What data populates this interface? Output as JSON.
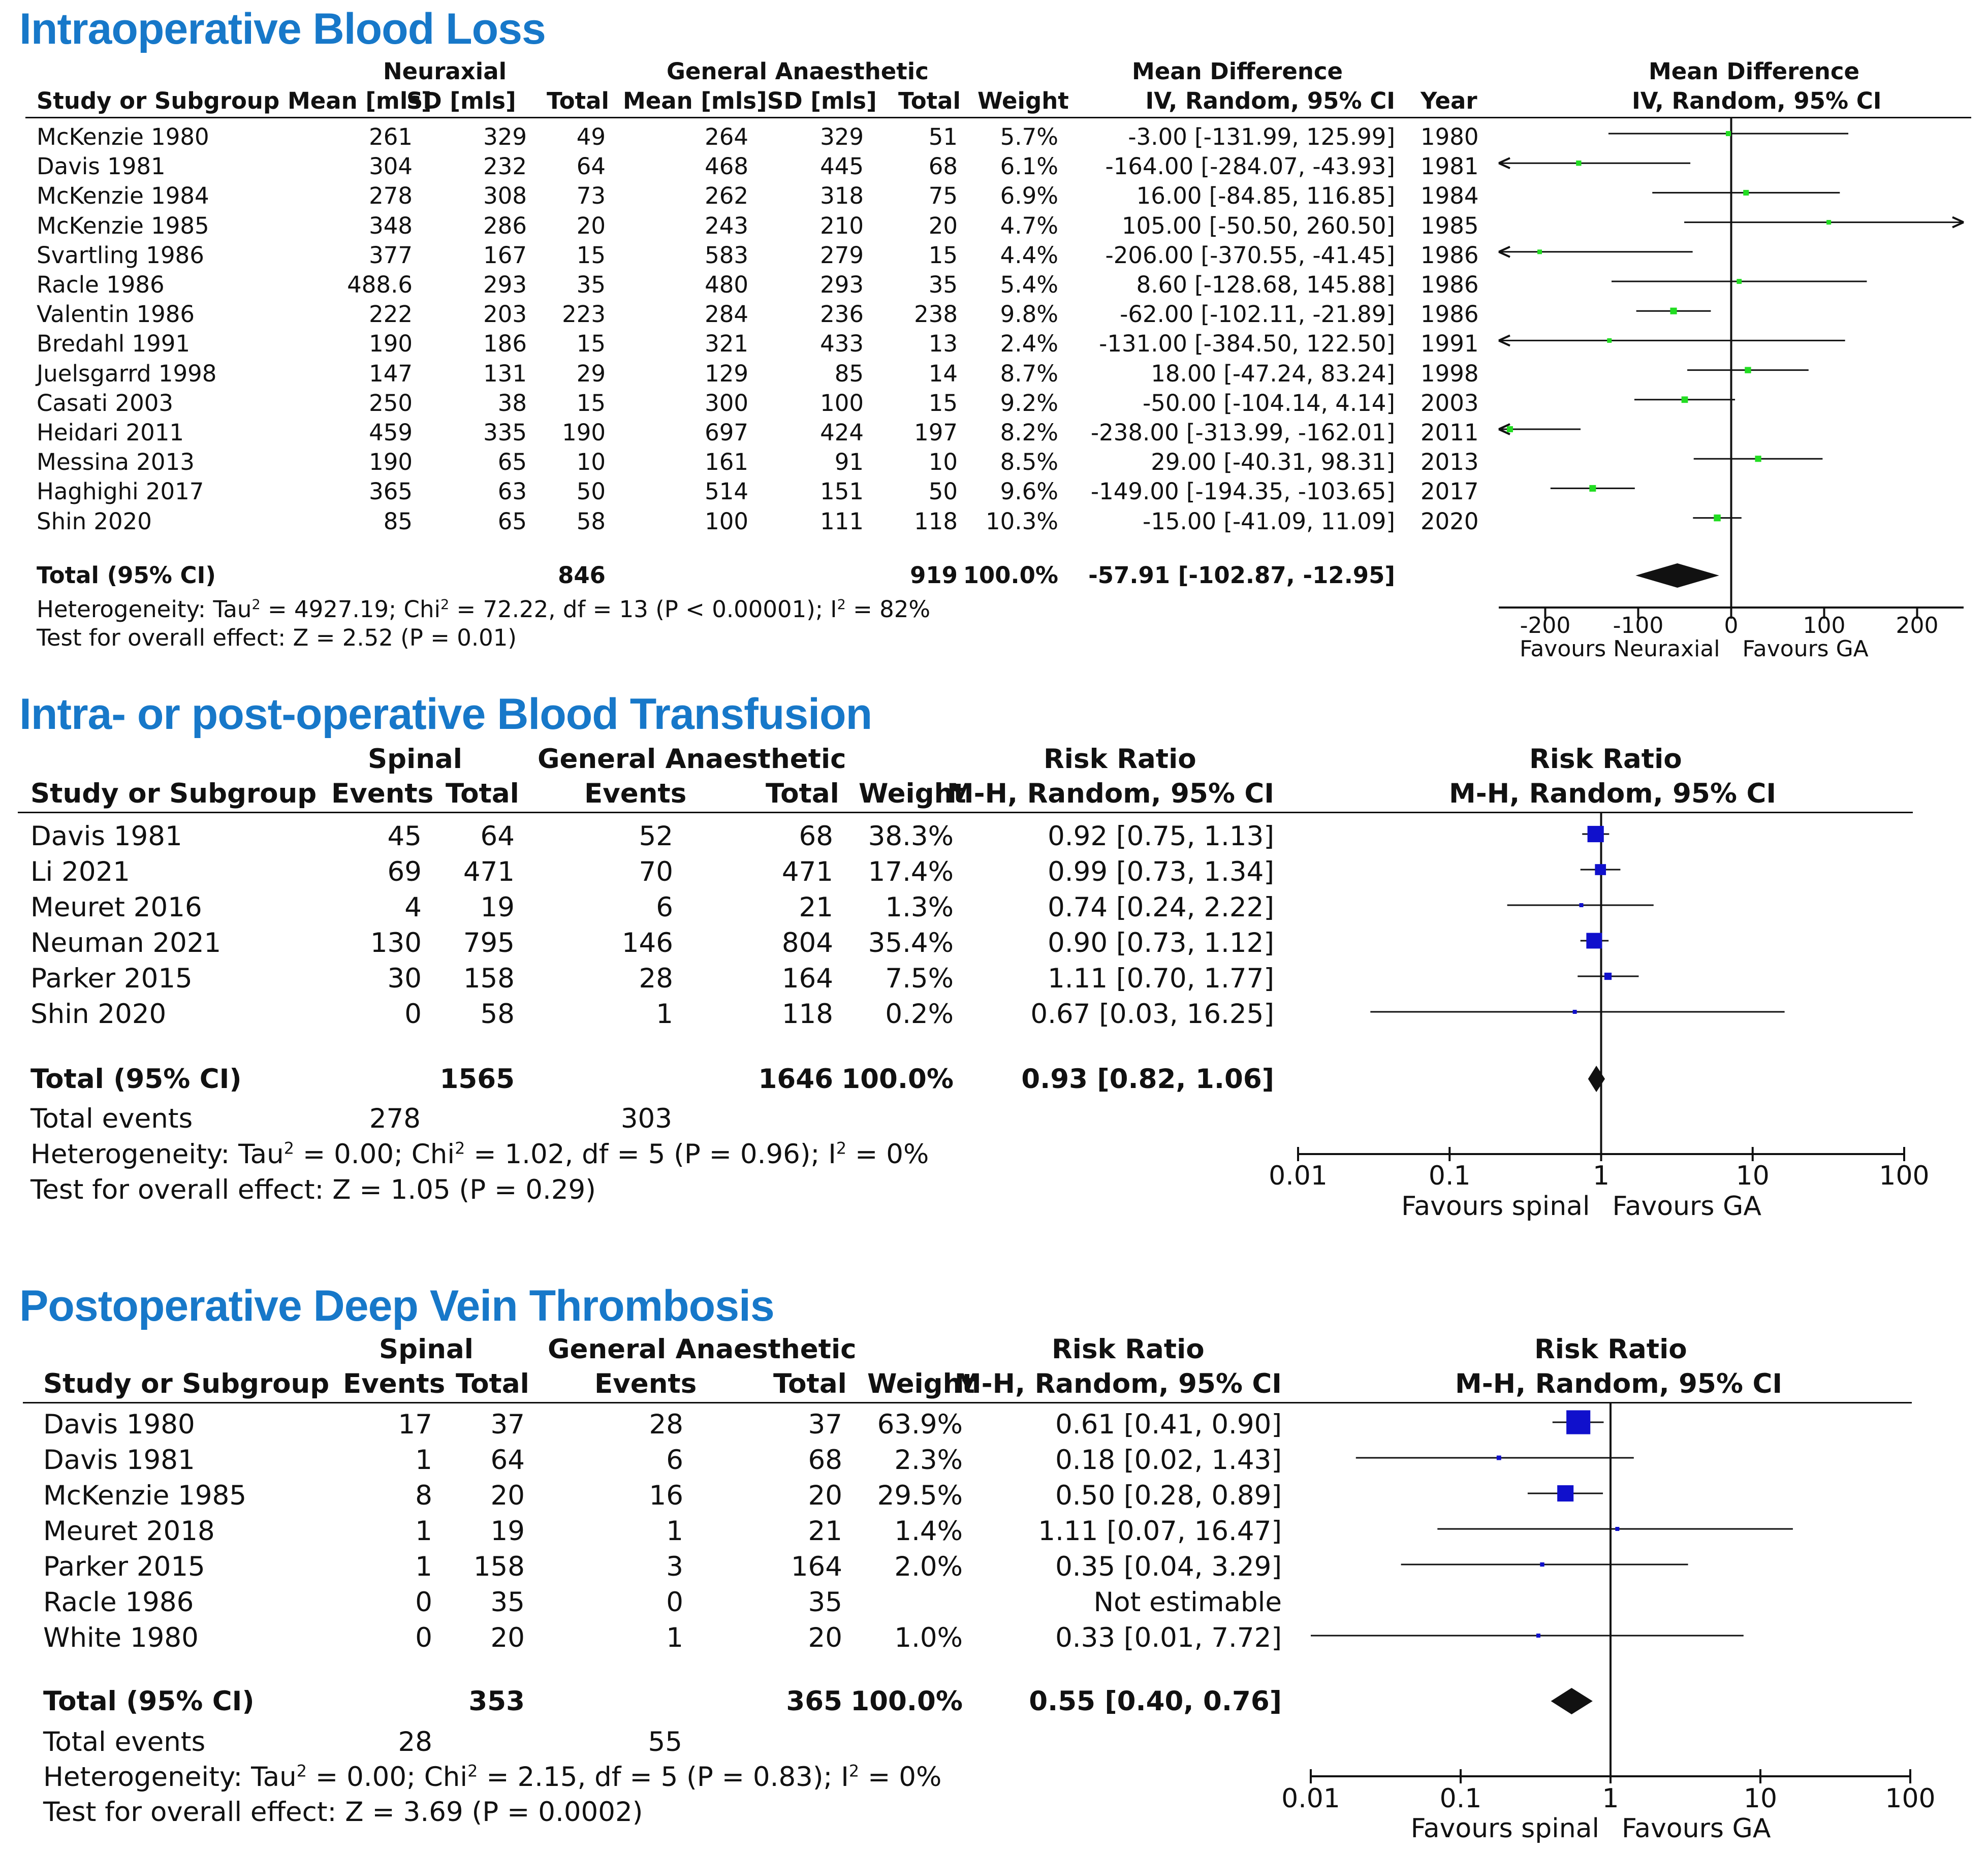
{
  "sections": [
    {
      "title": "Intraoperative Blood Loss",
      "group1": "Neuraxial",
      "group2": "General Anaesthetic",
      "col_headers": [
        "Study or Subgroup",
        "Mean [mls]",
        "SD [mls]",
        "Total",
        "Mean [mls]",
        "SD [mls]",
        "Total",
        "Weight",
        "IV, Random, 95% CI",
        "Year"
      ],
      "effect_header": "Mean Difference",
      "effect_method": "IV, Random, 95% CI",
      "plot_header": "Mean Difference",
      "plot_method": "IV, Random, 95% CI",
      "rows": [
        [
          "McKenzie 1980",
          "261",
          "329",
          "49",
          "264",
          "329",
          "51",
          "5.7%",
          "-3.00 [-131.99, 125.99]",
          "1980"
        ],
        [
          "Davis 1981",
          "304",
          "232",
          "64",
          "468",
          "445",
          "68",
          "6.1%",
          "-164.00 [-284.07, -43.93]",
          "1981"
        ],
        [
          "McKenzie 1984",
          "278",
          "308",
          "73",
          "262",
          "318",
          "75",
          "6.9%",
          "16.00 [-84.85, 116.85]",
          "1984"
        ],
        [
          "McKenzie 1985",
          "348",
          "286",
          "20",
          "243",
          "210",
          "20",
          "4.7%",
          "105.00 [-50.50, 260.50]",
          "1985"
        ],
        [
          "Svartling 1986",
          "377",
          "167",
          "15",
          "583",
          "279",
          "15",
          "4.4%",
          "-206.00 [-370.55, -41.45]",
          "1986"
        ],
        [
          "Racle 1986",
          "488.6",
          "293",
          "35",
          "480",
          "293",
          "35",
          "5.4%",
          "8.60 [-128.68, 145.88]",
          "1986"
        ],
        [
          "Valentin 1986",
          "222",
          "203",
          "223",
          "284",
          "236",
          "238",
          "9.8%",
          "-62.00 [-102.11, -21.89]",
          "1986"
        ],
        [
          "Bredahl 1991",
          "190",
          "186",
          "15",
          "321",
          "433",
          "13",
          "2.4%",
          "-131.00 [-384.50, 122.50]",
          "1991"
        ],
        [
          "Juelsgarrd 1998",
          "147",
          "131",
          "29",
          "129",
          "85",
          "14",
          "8.7%",
          "18.00 [-47.24, 83.24]",
          "1998"
        ],
        [
          "Casati 2003",
          "250",
          "38",
          "15",
          "300",
          "100",
          "15",
          "9.2%",
          "-50.00 [-104.14, 4.14]",
          "2003"
        ],
        [
          "Heidari 2011",
          "459",
          "335",
          "190",
          "697",
          "424",
          "197",
          "8.2%",
          "-238.00 [-313.99, -162.01]",
          "2011"
        ],
        [
          "Messina 2013",
          "190",
          "65",
          "10",
          "161",
          "91",
          "10",
          "8.5%",
          "29.00 [-40.31, 98.31]",
          "2013"
        ],
        [
          "Haghighi 2017",
          "365",
          "63",
          "50",
          "514",
          "151",
          "50",
          "9.6%",
          "-149.00 [-194.35, -103.65]",
          "2017"
        ],
        [
          "Shin 2020",
          "85",
          "65",
          "58",
          "100",
          "111",
          "118",
          "10.3%",
          "-15.00 [-41.09, 11.09]",
          "2020"
        ]
      ],
      "total_row": [
        "Total (95% CI)",
        "846",
        "919",
        "100.0%",
        "-57.91 [-102.87, -12.95]"
      ],
      "heterogeneity": [
        "Heterogeneity: Tau",
        "2",
        " = 4927.19; Chi",
        "2",
        " = 72.22, df = 13 (P < 0.00001); I",
        "2",
        " = 82%"
      ],
      "overall_effect": "Test for overall effect: Z = 2.52 (P = 0.01)",
      "axis_ticks": [
        "-200",
        "-100",
        "0",
        "100",
        "200"
      ],
      "favours_left": "Favours Neuraxial",
      "favours_right": "Favours GA"
    },
    {
      "title": "Intra- or post-operative Blood Transfusion",
      "group1": "Spinal",
      "group2": "General Anaesthetic",
      "col_headers": [
        "Study or Subgroup",
        "Events",
        "Total",
        "Events",
        "Total",
        "Weight",
        "M-H, Random, 95% CI"
      ],
      "effect_header": "Risk Ratio",
      "effect_method": "M-H, Random, 95% CI",
      "plot_header": "Risk Ratio",
      "plot_method": "M-H, Random, 95% CI",
      "rows": [
        [
          "Davis 1981",
          "45",
          "64",
          "52",
          "68",
          "38.3%",
          "0.92 [0.75, 1.13]"
        ],
        [
          "Li 2021",
          "69",
          "471",
          "70",
          "471",
          "17.4%",
          "0.99 [0.73, 1.34]"
        ],
        [
          "Meuret 2016",
          "4",
          "19",
          "6",
          "21",
          "1.3%",
          "0.74 [0.24, 2.22]"
        ],
        [
          "Neuman 2021",
          "130",
          "795",
          "146",
          "804",
          "35.4%",
          "0.90 [0.73, 1.12]"
        ],
        [
          "Parker 2015",
          "30",
          "158",
          "28",
          "164",
          "7.5%",
          "1.11 [0.70, 1.77]"
        ],
        [
          "Shin 2020",
          "0",
          "58",
          "1",
          "118",
          "0.2%",
          "0.67 [0.03, 16.25]"
        ]
      ],
      "total_row": [
        "Total (95% CI)",
        "1565",
        "1646",
        "100.0%",
        "0.93 [0.82, 1.06]"
      ],
      "total_events": [
        "Total events",
        "278",
        "303"
      ],
      "heterogeneity": [
        "Heterogeneity: Tau",
        "2",
        " = 0.00; Chi",
        "2",
        " = 1.02, df = 5 (P = 0.96); I",
        "2",
        " = 0%"
      ],
      "overall_effect": "Test for overall effect: Z = 1.05 (P = 0.29)",
      "axis_ticks": [
        "0.01",
        "0.1",
        "1",
        "10",
        "100"
      ],
      "favours_left": "Favours spinal",
      "favours_right": "Favours GA"
    },
    {
      "title": "Postoperative Deep Vein Thrombosis",
      "group1": "Spinal",
      "group2": "General Anaesthetic",
      "col_headers": [
        "Study or Subgroup",
        "Events",
        "Total",
        "Events",
        "Total",
        "Weight",
        "M-H, Random, 95% CI"
      ],
      "effect_header": "Risk Ratio",
      "effect_method": "M-H, Random, 95% CI",
      "plot_header": "Risk Ratio",
      "plot_method": "M-H, Random, 95% CI",
      "rows": [
        [
          "Davis 1980",
          "17",
          "37",
          "28",
          "37",
          "63.9%",
          "0.61 [0.41, 0.90]"
        ],
        [
          "Davis 1981",
          "1",
          "64",
          "6",
          "68",
          "2.3%",
          "0.18 [0.02, 1.43]"
        ],
        [
          "McKenzie 1985",
          "8",
          "20",
          "16",
          "20",
          "29.5%",
          "0.50 [0.28, 0.89]"
        ],
        [
          "Meuret 2018",
          "1",
          "19",
          "1",
          "21",
          "1.4%",
          "1.11 [0.07, 16.47]"
        ],
        [
          "Parker 2015",
          "1",
          "158",
          "3",
          "164",
          "2.0%",
          "0.35 [0.04, 3.29]"
        ],
        [
          "Racle 1986",
          "0",
          "35",
          "0",
          "35",
          "",
          "Not estimable"
        ],
        [
          "White 1980",
          "0",
          "20",
          "1",
          "20",
          "1.0%",
          "0.33 [0.01, 7.72]"
        ]
      ],
      "total_row": [
        "Total (95% CI)",
        "353",
        "365",
        "100.0%",
        "0.55 [0.40, 0.76]"
      ],
      "total_events": [
        "Total events",
        "28",
        "55"
      ],
      "heterogeneity": [
        "Heterogeneity: Tau",
        "2",
        " = 0.00; Chi",
        "2",
        " = 2.15, df = 5 (P = 0.83); I",
        "2",
        " = 0%"
      ],
      "overall_effect": "Test for overall effect: Z = 3.69 (P = 0.0002)",
      "axis_ticks": [
        "0.01",
        "0.1",
        "1",
        "10",
        "100"
      ],
      "favours_left": "Favours spinal",
      "favours_right": "Favours GA"
    }
  ],
  "chart_data": [
    {
      "type": "forest",
      "title": "Intraoperative Blood Loss",
      "scale": "linear",
      "xlim": [
        -250,
        250
      ],
      "null_value": 0,
      "marker_color": "#22dd22",
      "studies": [
        {
          "name": "McKenzie 1980",
          "est": -3.0,
          "lo": -131.99,
          "hi": 125.99,
          "weight": 5.7
        },
        {
          "name": "Davis 1981",
          "est": -164.0,
          "lo": -284.07,
          "hi": -43.93,
          "weight": 6.1
        },
        {
          "name": "McKenzie 1984",
          "est": 16.0,
          "lo": -84.85,
          "hi": 116.85,
          "weight": 6.9
        },
        {
          "name": "McKenzie 1985",
          "est": 105.0,
          "lo": -50.5,
          "hi": 260.5,
          "weight": 4.7
        },
        {
          "name": "Svartling 1986",
          "est": -206.0,
          "lo": -370.55,
          "hi": -41.45,
          "weight": 4.4
        },
        {
          "name": "Racle 1986",
          "est": 8.6,
          "lo": -128.68,
          "hi": 145.88,
          "weight": 5.4
        },
        {
          "name": "Valentin 1986",
          "est": -62.0,
          "lo": -102.11,
          "hi": -21.89,
          "weight": 9.8
        },
        {
          "name": "Bredahl 1991",
          "est": -131.0,
          "lo": -384.5,
          "hi": 122.5,
          "weight": 2.4
        },
        {
          "name": "Juelsgarrd 1998",
          "est": 18.0,
          "lo": -47.24,
          "hi": 83.24,
          "weight": 8.7
        },
        {
          "name": "Casati 2003",
          "est": -50.0,
          "lo": -104.14,
          "hi": 4.14,
          "weight": 9.2
        },
        {
          "name": "Heidari 2011",
          "est": -238.0,
          "lo": -313.99,
          "hi": -162.01,
          "weight": 8.2
        },
        {
          "name": "Messina 2013",
          "est": 29.0,
          "lo": -40.31,
          "hi": 98.31,
          "weight": 8.5
        },
        {
          "name": "Haghighi 2017",
          "est": -149.0,
          "lo": -194.35,
          "hi": -103.65,
          "weight": 9.6
        },
        {
          "name": "Shin 2020",
          "est": -15.0,
          "lo": -41.09,
          "hi": 11.09,
          "weight": 10.3
        }
      ],
      "total": {
        "est": -57.91,
        "lo": -102.87,
        "hi": -12.95
      },
      "x_ticks": [
        -200,
        -100,
        0,
        100,
        200
      ],
      "xlabel_left": "Favours Neuraxial",
      "xlabel_right": "Favours GA"
    },
    {
      "type": "forest",
      "title": "Intra- or post-operative Blood Transfusion",
      "scale": "log",
      "xlim": [
        0.01,
        100
      ],
      "null_value": 1,
      "marker_color": "#1010cc",
      "studies": [
        {
          "name": "Davis 1981",
          "est": 0.92,
          "lo": 0.75,
          "hi": 1.13,
          "weight": 38.3
        },
        {
          "name": "Li 2021",
          "est": 0.99,
          "lo": 0.73,
          "hi": 1.34,
          "weight": 17.4
        },
        {
          "name": "Meuret 2016",
          "est": 0.74,
          "lo": 0.24,
          "hi": 2.22,
          "weight": 1.3
        },
        {
          "name": "Neuman 2021",
          "est": 0.9,
          "lo": 0.73,
          "hi": 1.12,
          "weight": 35.4
        },
        {
          "name": "Parker 2015",
          "est": 1.11,
          "lo": 0.7,
          "hi": 1.77,
          "weight": 7.5
        },
        {
          "name": "Shin 2020",
          "est": 0.67,
          "lo": 0.03,
          "hi": 16.25,
          "weight": 0.2
        }
      ],
      "total": {
        "est": 0.93,
        "lo": 0.82,
        "hi": 1.06
      },
      "x_ticks": [
        0.01,
        0.1,
        1,
        10,
        100
      ],
      "xlabel_left": "Favours spinal",
      "xlabel_right": "Favours GA"
    },
    {
      "type": "forest",
      "title": "Postoperative Deep Vein Thrombosis",
      "scale": "log",
      "xlim": [
        0.01,
        100
      ],
      "null_value": 1,
      "marker_color": "#1010cc",
      "studies": [
        {
          "name": "Davis 1980",
          "est": 0.61,
          "lo": 0.41,
          "hi": 0.9,
          "weight": 63.9
        },
        {
          "name": "Davis 1981",
          "est": 0.18,
          "lo": 0.02,
          "hi": 1.43,
          "weight": 2.3
        },
        {
          "name": "McKenzie 1985",
          "est": 0.5,
          "lo": 0.28,
          "hi": 0.89,
          "weight": 29.5
        },
        {
          "name": "Meuret 2018",
          "est": 1.11,
          "lo": 0.07,
          "hi": 16.47,
          "weight": 1.4
        },
        {
          "name": "Parker 2015",
          "est": 0.35,
          "lo": 0.04,
          "hi": 3.29,
          "weight": 2.0
        },
        {
          "name": "Racle 1986",
          "est": null,
          "lo": null,
          "hi": null,
          "weight": null
        },
        {
          "name": "White 1980",
          "est": 0.33,
          "lo": 0.01,
          "hi": 7.72,
          "weight": 1.0
        }
      ],
      "total": {
        "est": 0.55,
        "lo": 0.4,
        "hi": 0.76
      },
      "x_ticks": [
        0.01,
        0.1,
        1,
        10,
        100
      ],
      "xlabel_left": "Favours spinal",
      "xlabel_right": "Favours GA"
    }
  ]
}
